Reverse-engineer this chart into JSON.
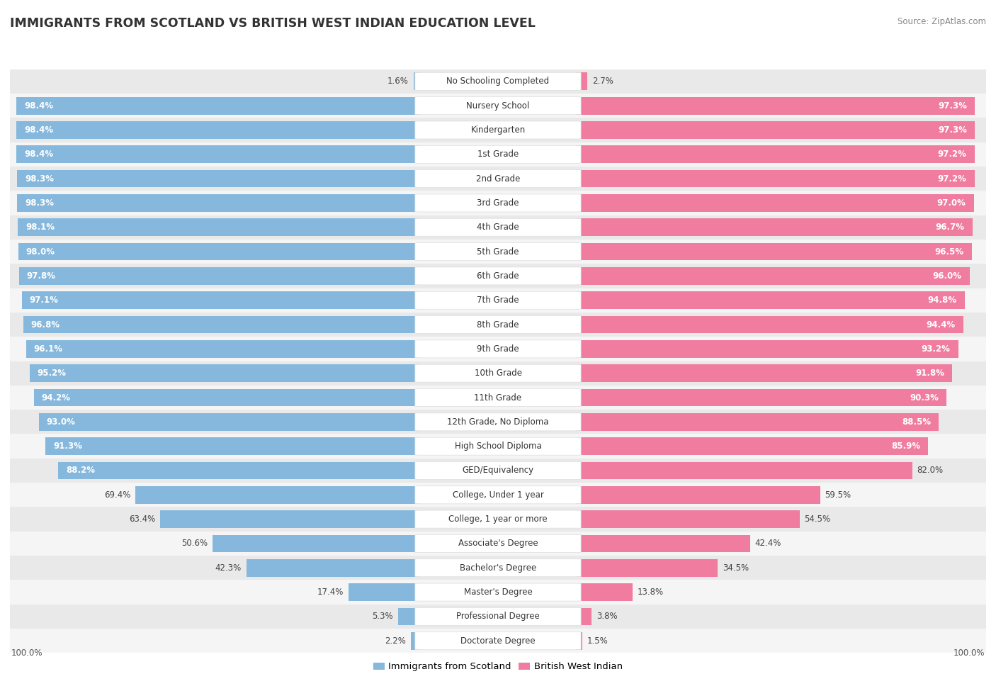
{
  "title": "IMMIGRANTS FROM SCOTLAND VS BRITISH WEST INDIAN EDUCATION LEVEL",
  "source": "Source: ZipAtlas.com",
  "categories": [
    "No Schooling Completed",
    "Nursery School",
    "Kindergarten",
    "1st Grade",
    "2nd Grade",
    "3rd Grade",
    "4th Grade",
    "5th Grade",
    "6th Grade",
    "7th Grade",
    "8th Grade",
    "9th Grade",
    "10th Grade",
    "11th Grade",
    "12th Grade, No Diploma",
    "High School Diploma",
    "GED/Equivalency",
    "College, Under 1 year",
    "College, 1 year or more",
    "Associate's Degree",
    "Bachelor's Degree",
    "Master's Degree",
    "Professional Degree",
    "Doctorate Degree"
  ],
  "scotland_values": [
    1.6,
    98.4,
    98.4,
    98.4,
    98.3,
    98.3,
    98.1,
    98.0,
    97.8,
    97.1,
    96.8,
    96.1,
    95.2,
    94.2,
    93.0,
    91.3,
    88.2,
    69.4,
    63.4,
    50.6,
    42.3,
    17.4,
    5.3,
    2.2
  ],
  "bwi_values": [
    2.7,
    97.3,
    97.3,
    97.2,
    97.2,
    97.0,
    96.7,
    96.5,
    96.0,
    94.8,
    94.4,
    93.2,
    91.8,
    90.3,
    88.5,
    85.9,
    82.0,
    59.5,
    54.5,
    42.4,
    34.5,
    13.8,
    3.8,
    1.5
  ],
  "scotland_color": "#85b8dc",
  "bwi_color": "#f07ca0",
  "row_colors": [
    "#e9e9e9",
    "#f5f5f5"
  ],
  "label_fontsize": 8.5,
  "value_fontsize": 8.5,
  "title_fontsize": 12.5,
  "source_fontsize": 8.5,
  "legend_fontsize": 9.5
}
